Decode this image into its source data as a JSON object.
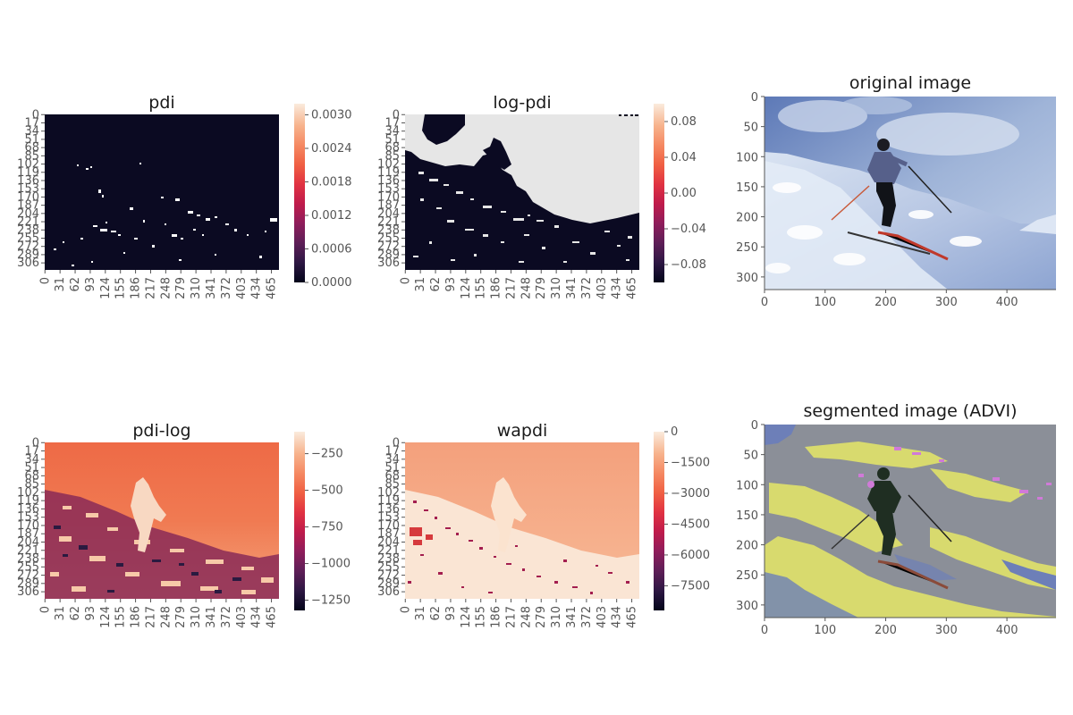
{
  "colors": {
    "rocket": [
      "#03051a",
      "#2d1743",
      "#5d1e57",
      "#8e1d5b",
      "#bf1b4b",
      "#e13342",
      "#f06043",
      "#f58a63",
      "#f7b48e",
      "#faebdd"
    ],
    "pdi_background": "#0b0a22",
    "pdi_speckle": "#ffffff",
    "logpdi_background": "#0b0a22",
    "logpdi_region": "#e6e6e6",
    "sky_blue": "#8aa3cf",
    "snow": "#e7edf7",
    "seg_gray": "#8b8f98",
    "seg_yellow": "#d8da6e",
    "seg_blue": "#6d7fb8",
    "seg_magenta": "#d07ad8",
    "seg_dark": "#1f2e22"
  },
  "chart_data": [
    {
      "type": "heatmap",
      "title": "pdi",
      "xticks": [
        "0",
        "31",
        "62",
        "93",
        "124",
        "155",
        "186",
        "217",
        "248",
        "279",
        "310",
        "341",
        "372",
        "403",
        "434",
        "465"
      ],
      "yticks": [
        "0",
        "17",
        "34",
        "51",
        "68",
        "85",
        "102",
        "119",
        "136",
        "153",
        "170",
        "187",
        "204",
        "221",
        "238",
        "255",
        "272",
        "289",
        "306"
      ],
      "colorbar": {
        "ticks": [
          "0.0000",
          "0.0006",
          "0.0012",
          "0.0018",
          "0.0024",
          "0.0030"
        ],
        "range": [
          0,
          0.0032
        ]
      }
    },
    {
      "type": "heatmap",
      "title": "log-pdi",
      "xticks": [
        "0",
        "31",
        "62",
        "93",
        "124",
        "155",
        "186",
        "217",
        "248",
        "279",
        "310",
        "341",
        "372",
        "403",
        "434",
        "465"
      ],
      "yticks": [
        "0",
        "17",
        "34",
        "51",
        "68",
        "85",
        "102",
        "119",
        "136",
        "153",
        "170",
        "187",
        "204",
        "221",
        "238",
        "255",
        "272",
        "289",
        "306"
      ],
      "colorbar": {
        "ticks": [
          "0.08",
          "0.04",
          "0.00",
          "−0.04",
          "−0.08"
        ],
        "range": [
          -0.1,
          0.1
        ]
      }
    },
    {
      "type": "image",
      "title": "original image",
      "xticks": [
        "0",
        "100",
        "200",
        "300",
        "400"
      ],
      "yticks": [
        "0",
        "50",
        "100",
        "150",
        "200",
        "250",
        "300"
      ],
      "xlim": [
        0,
        481
      ],
      "ylim": [
        321,
        0
      ]
    },
    {
      "type": "heatmap",
      "title": "pdi-log",
      "xticks": [
        "0",
        "31",
        "62",
        "93",
        "124",
        "155",
        "186",
        "217",
        "248",
        "279",
        "310",
        "341",
        "372",
        "403",
        "434",
        "465"
      ],
      "yticks": [
        "0",
        "17",
        "34",
        "51",
        "68",
        "85",
        "102",
        "119",
        "136",
        "153",
        "170",
        "187",
        "204",
        "221",
        "238",
        "255",
        "272",
        "289",
        "306"
      ],
      "colorbar": {
        "ticks": [
          "−250",
          "−500",
          "−750",
          "−1000",
          "−1250"
        ],
        "range": [
          -1320,
          -100
        ]
      }
    },
    {
      "type": "heatmap",
      "title": "wapdi",
      "xticks": [
        "0",
        "31",
        "62",
        "93",
        "124",
        "155",
        "186",
        "217",
        "248",
        "279",
        "310",
        "341",
        "372",
        "403",
        "434",
        "465"
      ],
      "yticks": [
        "0",
        "17",
        "34",
        "51",
        "68",
        "85",
        "102",
        "119",
        "136",
        "153",
        "170",
        "187",
        "204",
        "221",
        "238",
        "255",
        "272",
        "289",
        "306"
      ],
      "colorbar": {
        "ticks": [
          "0",
          "−1500",
          "−3000",
          "−4500",
          "−6000",
          "−7500"
        ],
        "range": [
          -8700,
          0
        ]
      }
    },
    {
      "type": "image",
      "title": "segmented image (ADVI)",
      "xticks": [
        "0",
        "100",
        "200",
        "300",
        "400"
      ],
      "yticks": [
        "0",
        "50",
        "100",
        "150",
        "200",
        "250",
        "300"
      ],
      "xlim": [
        0,
        481
      ],
      "ylim": [
        321,
        0
      ]
    }
  ]
}
